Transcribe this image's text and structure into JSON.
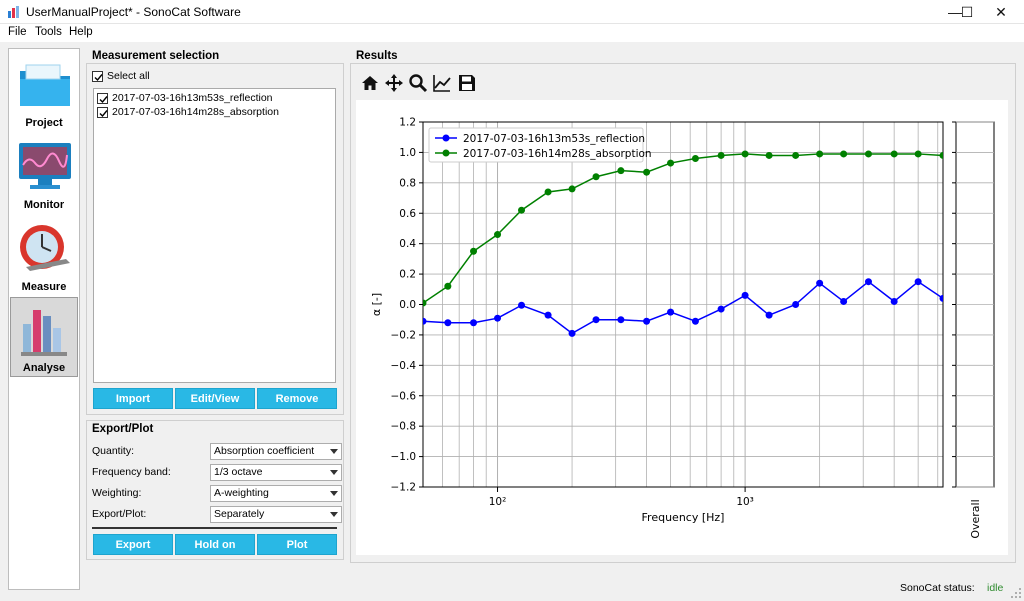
{
  "window": {
    "title": "UserManualProject* - SonoCat Software",
    "minimize": "—",
    "maximize": "☐",
    "close": "✕"
  },
  "menu": [
    "File",
    "Tools",
    "Help"
  ],
  "nav": [
    {
      "label": "Project",
      "icon": "folder-icon"
    },
    {
      "label": "Monitor",
      "icon": "monitor-icon"
    },
    {
      "label": "Measure",
      "icon": "stopwatch-icon"
    },
    {
      "label": "Analyse",
      "icon": "bar-chart-icon",
      "active": true
    }
  ],
  "measurement_selection": {
    "title": "Measurement selection",
    "select_all": "Select all",
    "items": [
      "2017-07-03-16h13m53s_reflection",
      "2017-07-03-16h14m28s_absorption"
    ],
    "buttons": {
      "import": "Import",
      "edit": "Edit/View",
      "remove": "Remove"
    }
  },
  "export_plot": {
    "title": "Export/Plot",
    "fields": [
      {
        "label": "Quantity:",
        "value": "Absorption coefficient"
      },
      {
        "label": "Frequency band:",
        "value": "1/3 octave"
      },
      {
        "label": "Weighting:",
        "value": "A-weighting"
      },
      {
        "label": "Export/Plot:",
        "value": "Separately"
      }
    ],
    "buttons": {
      "export": "Export",
      "hold": "Hold on",
      "plot": "Plot"
    }
  },
  "results": {
    "title": "Results",
    "toolbar": [
      "home-icon",
      "pan-icon",
      "zoom-icon",
      "lines-icon",
      "save-icon"
    ]
  },
  "status": {
    "label": "SonoCat status:",
    "value": "idle",
    "value_color": "#2e8b2e"
  },
  "chart_data": {
    "type": "line",
    "xlabel": "Frequency [Hz]",
    "ylabel": "α [-]",
    "xscale": "log",
    "xlim": [
      50,
      6300
    ],
    "ylim": [
      -1.2,
      1.2
    ],
    "yticks": [
      "−1.2",
      "−1.0",
      "−0.8",
      "−0.6",
      "−0.4",
      "−0.2",
      "0.0",
      "0.2",
      "0.4",
      "0.6",
      "0.8",
      "1.0",
      "1.2"
    ],
    "xtick_labels": [
      "10²",
      "10³"
    ],
    "side_label": "Overall",
    "grid": true,
    "legend": "top-left",
    "x": [
      50,
      63,
      80,
      100,
      125,
      160,
      200,
      250,
      315,
      400,
      500,
      630,
      800,
      1000,
      1250,
      1600,
      2000,
      2500,
      3150,
      4000,
      5000,
      6300
    ],
    "series": [
      {
        "name": "2017-07-03-16h13m53s_reflection",
        "color": "#0000ff",
        "values": [
          -0.11,
          -0.12,
          -0.12,
          -0.09,
          -0.005,
          -0.07,
          -0.19,
          -0.1,
          -0.1,
          -0.11,
          -0.05,
          -0.11,
          -0.03,
          0.06,
          -0.07,
          0.0,
          0.14,
          0.02,
          0.15,
          0.02,
          0.15,
          0.04
        ]
      },
      {
        "name": "2017-07-03-16h14m28s_absorption",
        "color": "#008000",
        "values": [
          0.01,
          0.12,
          0.35,
          0.46,
          0.62,
          0.74,
          0.76,
          0.84,
          0.88,
          0.87,
          0.93,
          0.96,
          0.98,
          0.99,
          0.98,
          0.98,
          0.99,
          0.99,
          0.99,
          0.99,
          0.99,
          0.98
        ]
      }
    ]
  }
}
